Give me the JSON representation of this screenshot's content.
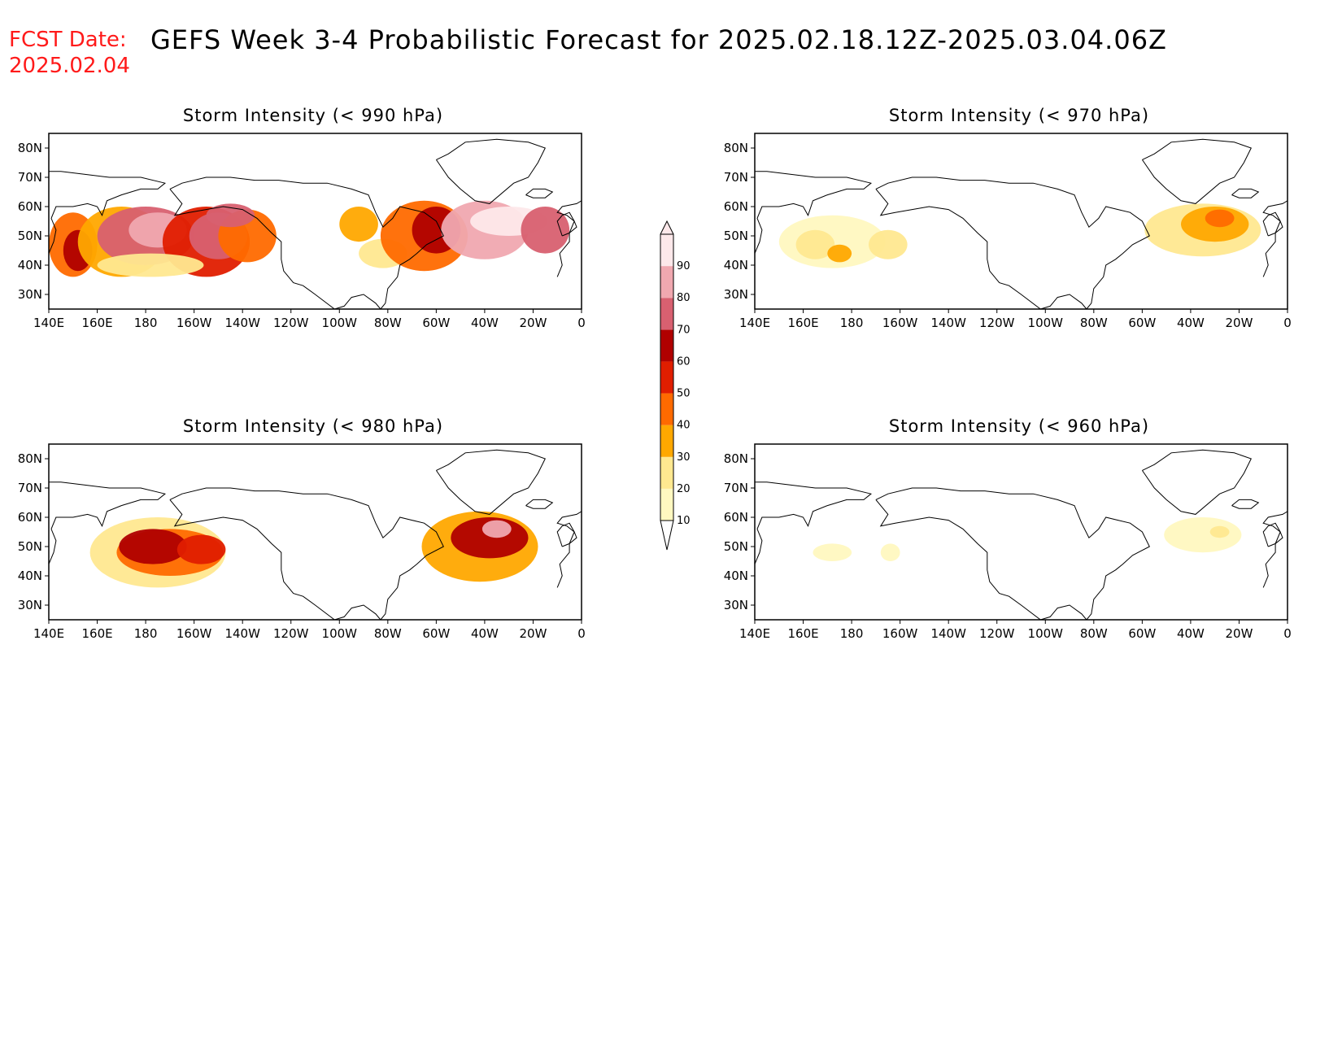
{
  "header": {
    "fcst_label": "FCST Date:",
    "fcst_date": "2025.02.04",
    "title": "GEFS Week 3-4 Probabilistic Forecast for 2025.02.18.12Z-2025.03.04.06Z"
  },
  "axes": {
    "lon_labels": [
      "140E",
      "160E",
      "180",
      "160W",
      "140W",
      "120W",
      "100W",
      "80W",
      "60W",
      "40W",
      "20W",
      "0"
    ],
    "lon_values": [
      140,
      160,
      180,
      200,
      220,
      240,
      260,
      280,
      300,
      320,
      340,
      360
    ],
    "lat_labels": [
      "80N",
      "70N",
      "60N",
      "50N",
      "40N",
      "30N"
    ],
    "lat_values": [
      80,
      70,
      60,
      50,
      40,
      30
    ],
    "lon_range": [
      140,
      360
    ],
    "lat_range": [
      25,
      85
    ]
  },
  "colorbar": {
    "levels": [
      "10",
      "20",
      "30",
      "40",
      "50",
      "60",
      "70",
      "80",
      "90"
    ],
    "colors": [
      "#fff8c0",
      "#ffe890",
      "#ffa800",
      "#ff6a00",
      "#e01e00",
      "#b00000",
      "#d86070",
      "#f0a8b0",
      "#fde8ea"
    ]
  },
  "chart_data": [
    {
      "type": "heatmap",
      "title": "Storm Intensity (< 990 hPa)",
      "blobs": [
        {
          "lon": 150,
          "lat": 47,
          "rlon": 10,
          "rlat": 11,
          "level": 4
        },
        {
          "lon": 152,
          "lat": 45,
          "rlon": 6,
          "rlat": 7,
          "level": 6
        },
        {
          "lon": 170,
          "lat": 48,
          "rlon": 18,
          "rlat": 12,
          "level": 3
        },
        {
          "lon": 180,
          "lat": 50,
          "rlon": 20,
          "rlat": 10,
          "level": 7
        },
        {
          "lon": 185,
          "lat": 52,
          "rlon": 12,
          "rlat": 6,
          "level": 8
        },
        {
          "lon": 205,
          "lat": 48,
          "rlon": 18,
          "rlat": 12,
          "level": 5
        },
        {
          "lon": 210,
          "lat": 50,
          "rlon": 12,
          "rlat": 8,
          "level": 7
        },
        {
          "lon": 222,
          "lat": 50,
          "rlon": 12,
          "rlat": 9,
          "level": 4
        },
        {
          "lon": 215,
          "lat": 57,
          "rlon": 10,
          "rlat": 4,
          "level": 7
        },
        {
          "lon": 182,
          "lat": 40,
          "rlon": 22,
          "rlat": 4,
          "level": 2
        },
        {
          "lon": 268,
          "lat": 54,
          "rlon": 8,
          "rlat": 6,
          "level": 3
        },
        {
          "lon": 278,
          "lat": 44,
          "rlon": 10,
          "rlat": 5,
          "level": 2
        },
        {
          "lon": 295,
          "lat": 50,
          "rlon": 18,
          "rlat": 12,
          "level": 4
        },
        {
          "lon": 300,
          "lat": 52,
          "rlon": 10,
          "rlat": 8,
          "level": 6
        },
        {
          "lon": 320,
          "lat": 52,
          "rlon": 18,
          "rlat": 10,
          "level": 8
        },
        {
          "lon": 330,
          "lat": 55,
          "rlon": 16,
          "rlat": 5,
          "level": 9
        },
        {
          "lon": 345,
          "lat": 52,
          "rlon": 10,
          "rlat": 8,
          "level": 7
        }
      ]
    },
    {
      "type": "heatmap",
      "title": "Storm Intensity (< 970 hPa)",
      "blobs": [
        {
          "lon": 172,
          "lat": 48,
          "rlon": 22,
          "rlat": 9,
          "level": 1
        },
        {
          "lon": 165,
          "lat": 47,
          "rlon": 8,
          "rlat": 5,
          "level": 2
        },
        {
          "lon": 195,
          "lat": 47,
          "rlon": 8,
          "rlat": 5,
          "level": 2
        },
        {
          "lon": 175,
          "lat": 44,
          "rlon": 5,
          "rlat": 3,
          "level": 3
        },
        {
          "lon": 325,
          "lat": 52,
          "rlon": 24,
          "rlat": 9,
          "level": 2
        },
        {
          "lon": 330,
          "lat": 54,
          "rlon": 14,
          "rlat": 6,
          "level": 3
        },
        {
          "lon": 332,
          "lat": 56,
          "rlon": 6,
          "rlat": 3,
          "level": 4
        }
      ]
    },
    {
      "type": "heatmap",
      "title": "Storm Intensity (< 980 hPa)",
      "blobs": [
        {
          "lon": 185,
          "lat": 48,
          "rlon": 28,
          "rlat": 12,
          "level": 2
        },
        {
          "lon": 190,
          "lat": 48,
          "rlon": 22,
          "rlat": 8,
          "level": 4
        },
        {
          "lon": 183,
          "lat": 50,
          "rlon": 14,
          "rlat": 6,
          "level": 6
        },
        {
          "lon": 203,
          "lat": 49,
          "rlon": 10,
          "rlat": 5,
          "level": 5
        },
        {
          "lon": 318,
          "lat": 50,
          "rlon": 24,
          "rlat": 12,
          "level": 3
        },
        {
          "lon": 322,
          "lat": 53,
          "rlon": 16,
          "rlat": 7,
          "level": 6
        },
        {
          "lon": 325,
          "lat": 56,
          "rlon": 6,
          "rlat": 3,
          "level": 8
        }
      ]
    },
    {
      "type": "heatmap",
      "title": "Storm Intensity (< 960 hPa)",
      "blobs": [
        {
          "lon": 172,
          "lat": 48,
          "rlon": 8,
          "rlat": 3,
          "level": 1
        },
        {
          "lon": 196,
          "lat": 48,
          "rlon": 4,
          "rlat": 3,
          "level": 1
        },
        {
          "lon": 325,
          "lat": 54,
          "rlon": 16,
          "rlat": 6,
          "level": 1
        },
        {
          "lon": 332,
          "lat": 55,
          "rlon": 4,
          "rlat": 2,
          "level": 2
        }
      ]
    }
  ]
}
